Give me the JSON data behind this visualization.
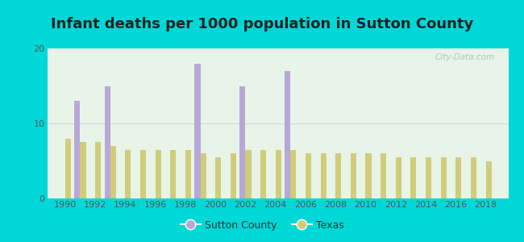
{
  "title": "Infant deaths per 1000 population in Sutton County",
  "years": [
    1990,
    1991,
    1992,
    1993,
    1994,
    1995,
    1996,
    1997,
    1998,
    1999,
    2000,
    2001,
    2002,
    2003,
    2004,
    2005,
    2006,
    2007,
    2008,
    2009,
    2010,
    2011,
    2012,
    2013,
    2014,
    2015,
    2016,
    2017,
    2018
  ],
  "sutton_values": [
    0,
    13,
    0,
    15,
    0,
    0,
    0,
    0,
    0,
    18,
    0,
    0,
    15,
    0,
    0,
    17,
    0,
    0,
    0,
    0,
    0,
    0,
    0,
    0,
    0,
    0,
    0,
    0,
    0
  ],
  "texas_values": [
    8.0,
    7.5,
    7.5,
    7.0,
    6.5,
    6.5,
    6.5,
    6.5,
    6.5,
    6.0,
    5.5,
    6.0,
    6.5,
    6.5,
    6.5,
    6.5,
    6.0,
    6.0,
    6.0,
    6.0,
    6.0,
    6.0,
    5.5,
    5.5,
    5.5,
    5.5,
    5.5,
    5.5,
    5.0
  ],
  "sutton_color": "#b8a8d8",
  "texas_color": "#d0cc7a",
  "background_outer": "#00d8d8",
  "background_plot": "#e8f4e8",
  "ylim": [
    0,
    20
  ],
  "yticks": [
    0,
    10,
    20
  ],
  "xlim_left": 1988.8,
  "xlim_right": 2019.5,
  "bar_width": 0.38,
  "title_fontsize": 13,
  "tick_fontsize": 8,
  "legend_sutton": "Sutton County",
  "legend_texas": "Texas",
  "watermark": "City-Data.com",
  "xticks": [
    1990,
    1992,
    1994,
    1996,
    1998,
    2000,
    2002,
    2004,
    2006,
    2008,
    2010,
    2012,
    2014,
    2016,
    2018
  ]
}
